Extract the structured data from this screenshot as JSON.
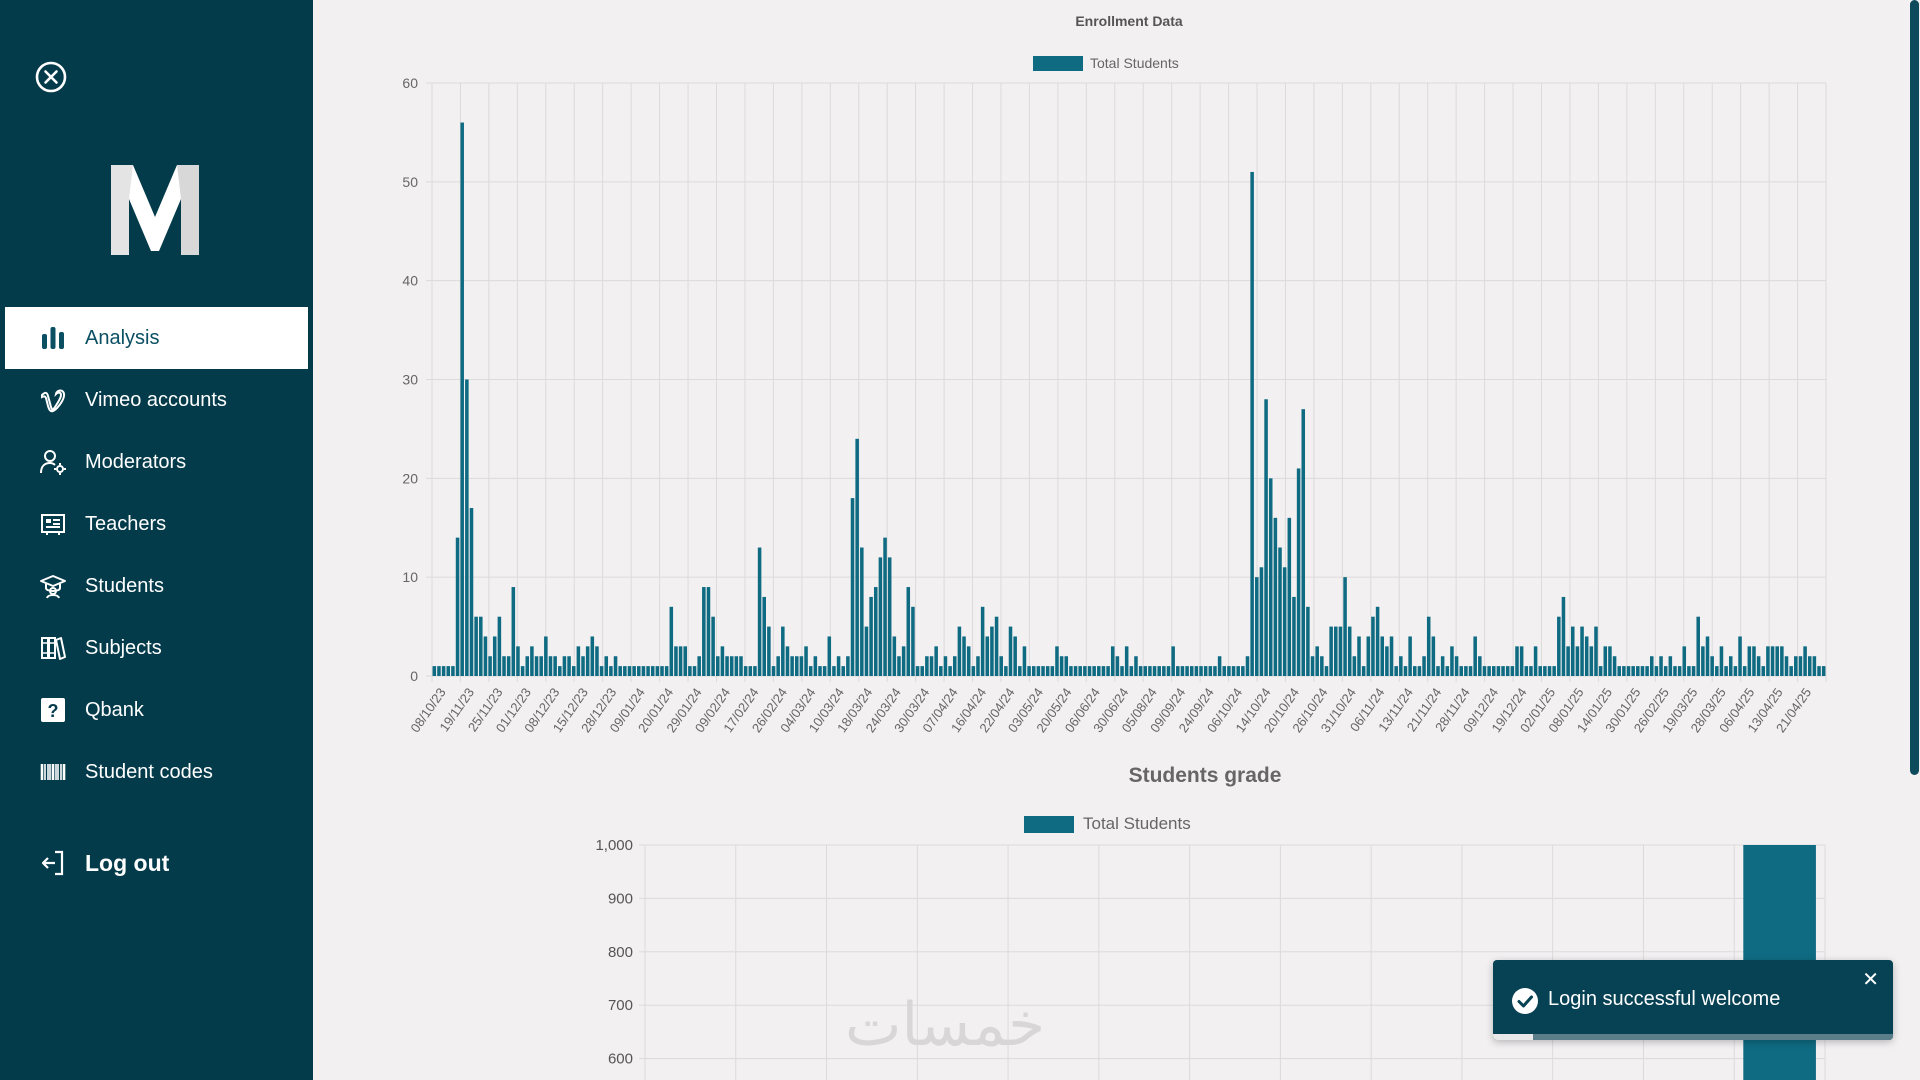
{
  "sidebar": {
    "items": [
      {
        "label": "Analysis",
        "icon": "bar-chart-icon",
        "active": true
      },
      {
        "label": "Vimeo accounts",
        "icon": "vimeo-icon"
      },
      {
        "label": "Moderators",
        "icon": "user-gear-icon"
      },
      {
        "label": "Teachers",
        "icon": "teacher-board-icon"
      },
      {
        "label": "Students",
        "icon": "graduation-cap-icon"
      },
      {
        "label": "Subjects",
        "icon": "books-icon"
      },
      {
        "label": "Qbank",
        "icon": "question-icon"
      },
      {
        "label": "Student codes",
        "icon": "barcode-icon"
      }
    ],
    "logout_label": "Log out",
    "logo_letter": "M"
  },
  "toast": {
    "message": "Login successful welcome",
    "progress": 0.1
  },
  "watermark": "خمسات",
  "colors": {
    "sidebar": "#043b4b",
    "bar": "#0f6b82",
    "background": "#f2f0f1"
  },
  "chart_data": [
    {
      "type": "bar",
      "title": "Enrollment Data",
      "legend": "Total Students",
      "legend_position": "top",
      "ylim": [
        0,
        60
      ],
      "yticks": [
        0,
        10,
        20,
        30,
        40,
        50,
        60
      ],
      "grid": true,
      "xtick_labels": [
        "08/10/23",
        "19/11/23",
        "25/11/23",
        "01/12/23",
        "08/12/23",
        "15/12/23",
        "28/12/23",
        "09/01/24",
        "20/01/24",
        "29/01/24",
        "09/02/24",
        "17/02/24",
        "26/02/24",
        "04/03/24",
        "10/03/24",
        "18/03/24",
        "24/03/24",
        "30/03/24",
        "07/04/24",
        "16/04/24",
        "22/04/24",
        "03/05/24",
        "20/05/24",
        "06/06/24",
        "30/06/24",
        "05/08/24",
        "09/09/24",
        "24/09/24",
        "06/10/24",
        "14/10/24",
        "20/10/24",
        "26/10/24",
        "31/10/24",
        "06/11/24",
        "13/11/24",
        "21/11/24",
        "28/11/24",
        "09/12/24",
        "19/12/24",
        "02/01/25",
        "08/01/25",
        "14/01/25",
        "30/01/25",
        "26/02/25",
        "19/03/25",
        "28/03/25",
        "06/04/25",
        "13/04/25",
        "21/04/25"
      ],
      "values": [
        1,
        1,
        1,
        1,
        1,
        14,
        56,
        30,
        17,
        6,
        6,
        4,
        2,
        4,
        6,
        2,
        2,
        9,
        3,
        1,
        2,
        3,
        2,
        2,
        4,
        2,
        2,
        1,
        2,
        2,
        1,
        3,
        2,
        3,
        4,
        3,
        1,
        2,
        1,
        2,
        1,
        1,
        1,
        1,
        1,
        1,
        1,
        1,
        1,
        1,
        1,
        7,
        3,
        3,
        3,
        1,
        1,
        2,
        9,
        9,
        6,
        2,
        3,
        2,
        2,
        2,
        2,
        1,
        1,
        1,
        13,
        8,
        5,
        1,
        2,
        5,
        3,
        2,
        2,
        2,
        3,
        1,
        2,
        1,
        1,
        4,
        1,
        2,
        1,
        2,
        18,
        24,
        13,
        5,
        8,
        9,
        12,
        14,
        12,
        4,
        2,
        3,
        9,
        7,
        1,
        1,
        2,
        2,
        3,
        1,
        2,
        1,
        2,
        5,
        4,
        3,
        1,
        2,
        7,
        4,
        5,
        6,
        2,
        1,
        5,
        4,
        1,
        3,
        1,
        1,
        1,
        1,
        1,
        1,
        3,
        2,
        2,
        1,
        1,
        1,
        1,
        1,
        1,
        1,
        1,
        1,
        3,
        2,
        1,
        3,
        1,
        2,
        1,
        1,
        1,
        1,
        1,
        1,
        1,
        3,
        1,
        1,
        1,
        1,
        1,
        1,
        1,
        1,
        1,
        2,
        1,
        1,
        1,
        1,
        1,
        2,
        51,
        10,
        11,
        28,
        20,
        16,
        13,
        11,
        16,
        8,
        21,
        27,
        7,
        2,
        3,
        2,
        1,
        5,
        5,
        5,
        10,
        5,
        2,
        4,
        1,
        4,
        6,
        7,
        4,
        3,
        4,
        1,
        2,
        1,
        4,
        1,
        1,
        2,
        6,
        4,
        1,
        2,
        1,
        3,
        2,
        1,
        1,
        1,
        4,
        2,
        1,
        1,
        1,
        1,
        1,
        1,
        1,
        3,
        3,
        1,
        1,
        3,
        1,
        1,
        1,
        1,
        6,
        8,
        3,
        5,
        3,
        5,
        4,
        3,
        5,
        1,
        3,
        3,
        2,
        1,
        1,
        1,
        1,
        1,
        1,
        1,
        2,
        1,
        2,
        1,
        2,
        1,
        1,
        3,
        1,
        1,
        6,
        3,
        4,
        2,
        1,
        3,
        1,
        2,
        1,
        4,
        1,
        3,
        3,
        2,
        1,
        3,
        3,
        3,
        3,
        2,
        1,
        2,
        2,
        3,
        2,
        2,
        1,
        1
      ]
    },
    {
      "type": "bar",
      "title": "Students grade",
      "legend": "Total Students",
      "legend_position": "top",
      "ylim": [
        600,
        1000
      ],
      "yticks": [
        "600",
        "700",
        "800",
        "900",
        "1,000"
      ],
      "grid": true,
      "categories": 13,
      "values": [
        0,
        0,
        0,
        0,
        0,
        0,
        0,
        0,
        0,
        0,
        0,
        0,
        1000
      ]
    }
  ]
}
